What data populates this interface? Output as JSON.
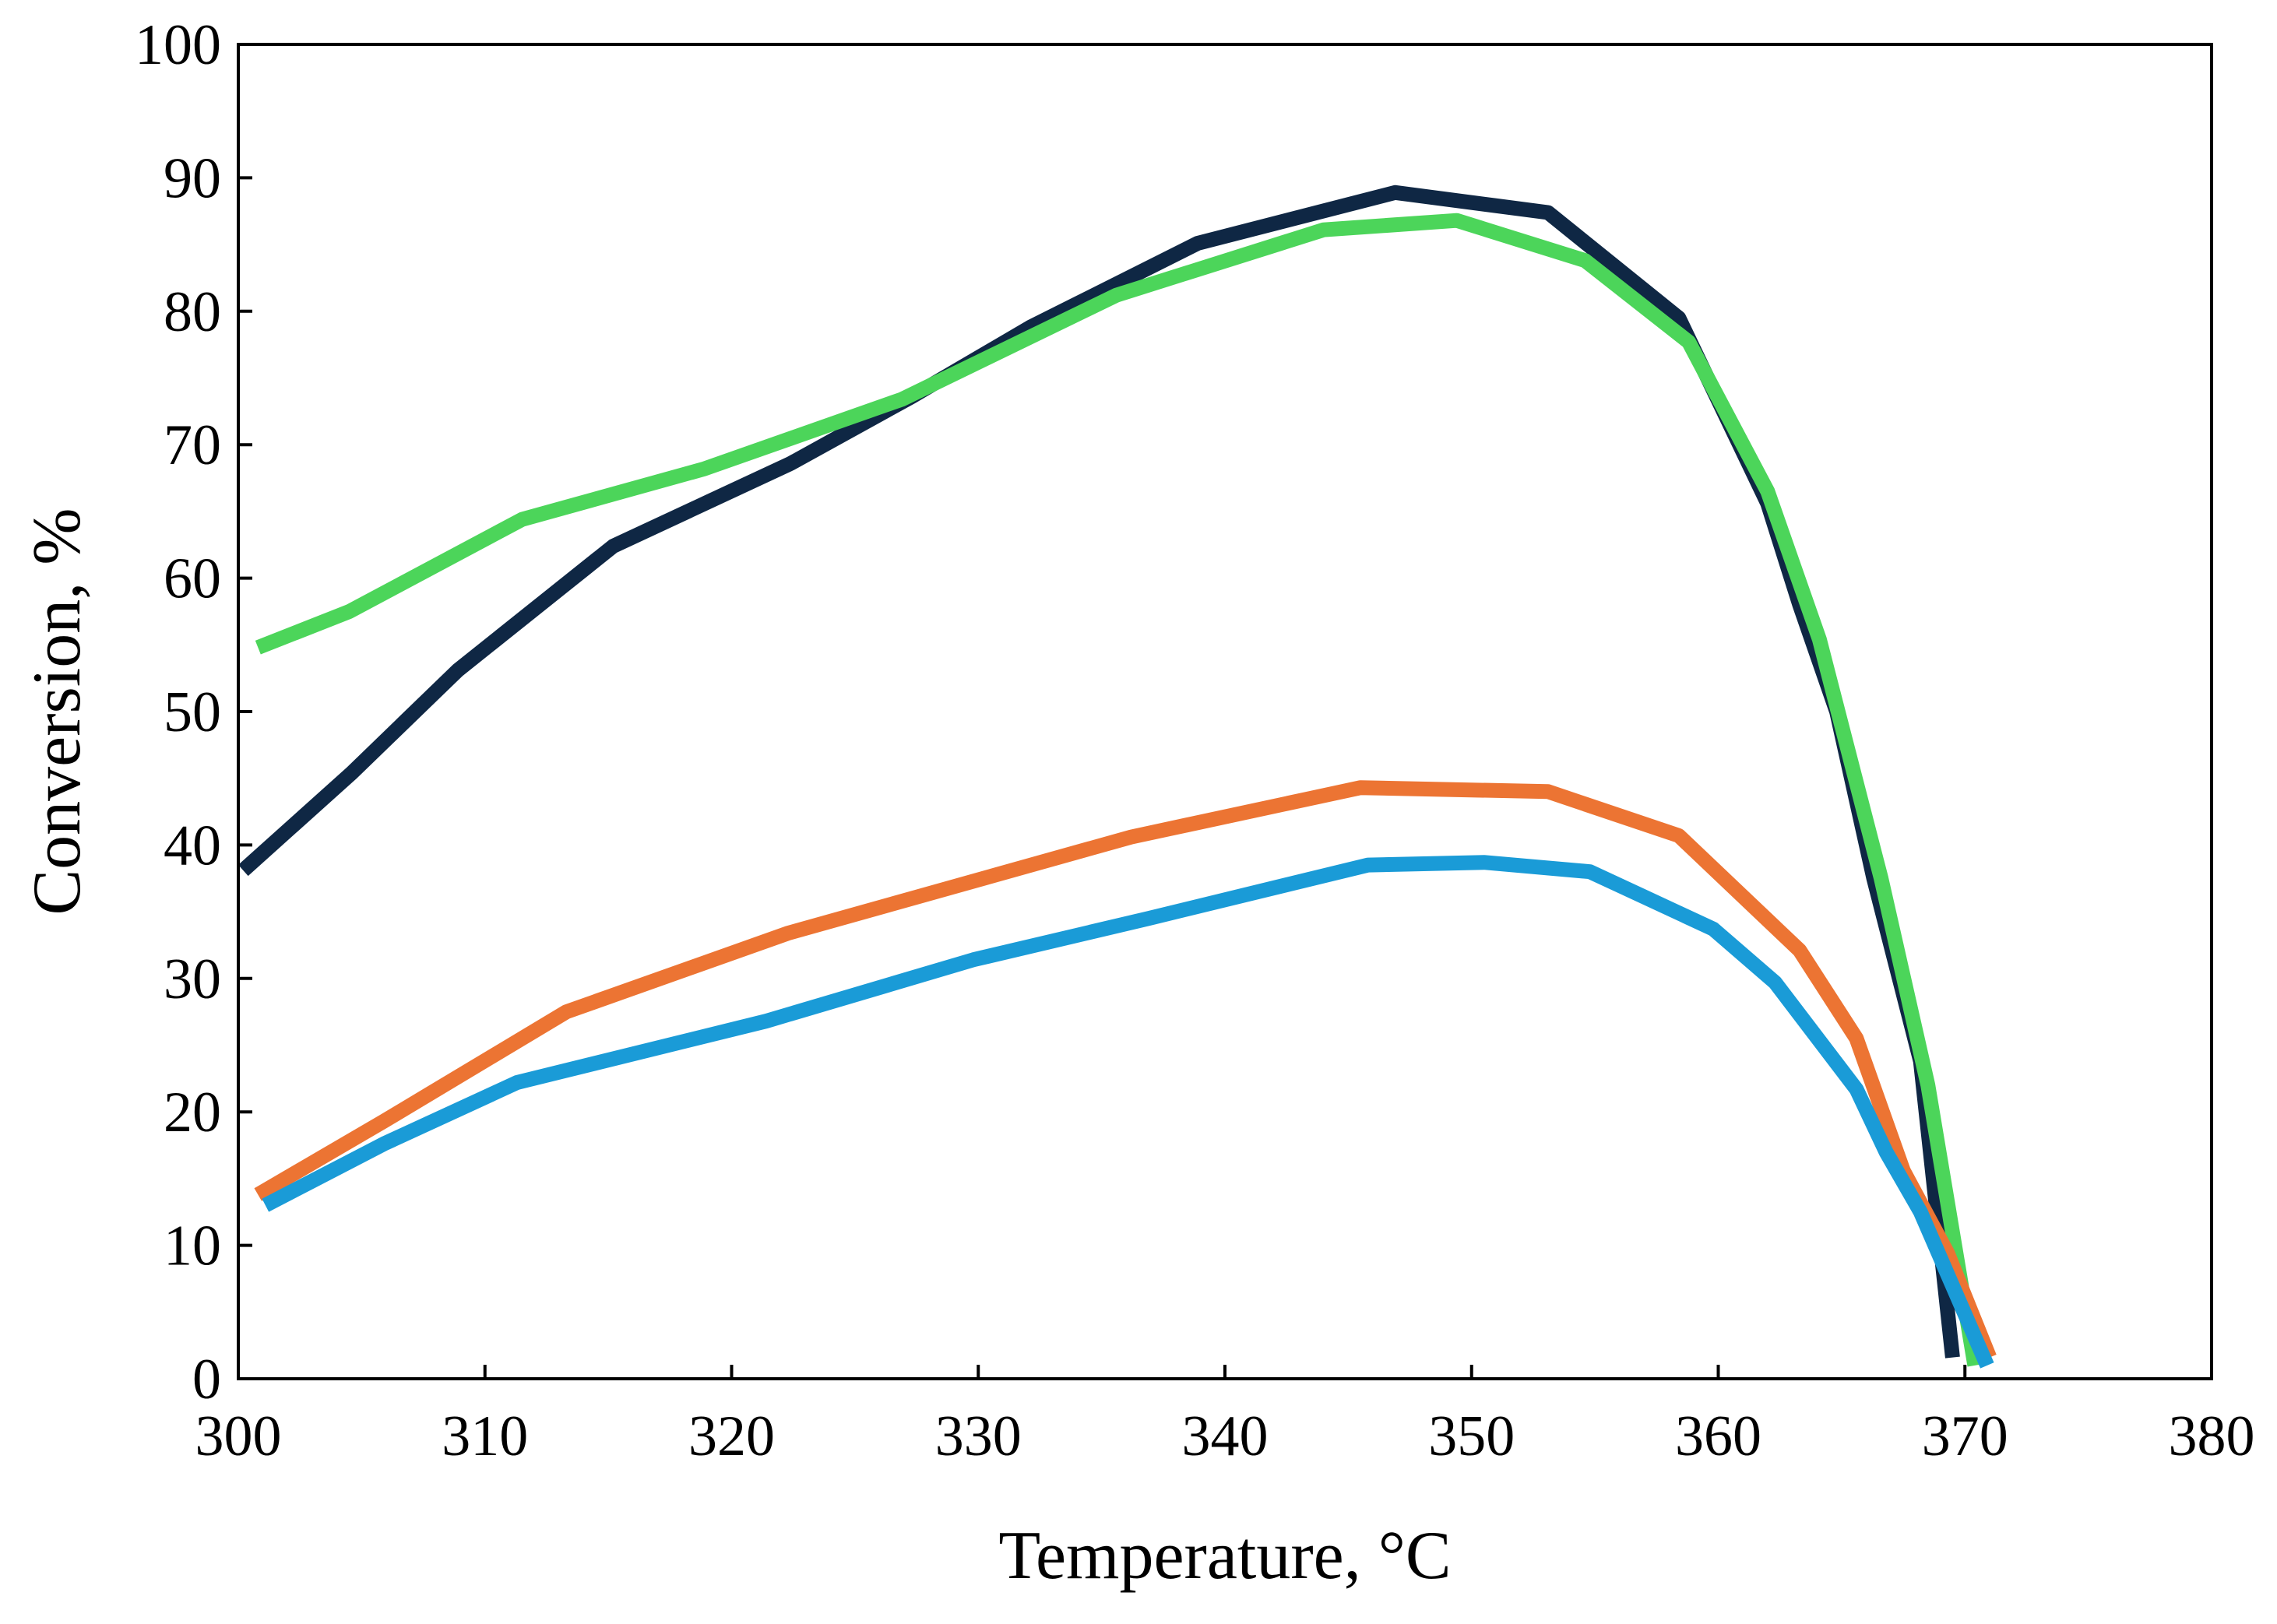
{
  "chart_data": {
    "type": "line",
    "title": "",
    "xlabel": "Temperature, °C",
    "ylabel": "Conversion, %",
    "xlim": [
      300,
      380
    ],
    "ylim": [
      0,
      100
    ],
    "x_ticks": [
      300,
      310,
      320,
      330,
      340,
      350,
      360,
      370,
      380
    ],
    "y_ticks": [
      0,
      10,
      20,
      30,
      40,
      50,
      60,
      70,
      80,
      90,
      100
    ],
    "x_tick_labels": [
      "300",
      "310",
      "320",
      "330",
      "340",
      "350",
      "360",
      "370",
      "380"
    ],
    "y_tick_labels": [
      "0",
      "10",
      "20",
      "30",
      "40",
      "50",
      "60",
      "70",
      "80",
      "90",
      "100"
    ],
    "grid": false,
    "legend": "none",
    "series": [
      {
        "name": "dark-navy series",
        "color": "#0f2744",
        "points": [
          [
            300.2,
            38.1
          ],
          [
            304.6,
            45.4
          ],
          [
            308.9,
            53.1
          ],
          [
            315.2,
            62.4
          ],
          [
            322.4,
            68.6
          ],
          [
            327.3,
            73.6
          ],
          [
            332.1,
            78.8
          ],
          [
            338.9,
            85.1
          ],
          [
            346.9,
            88.9
          ],
          [
            353.1,
            87.4
          ],
          [
            358.4,
            79.5
          ],
          [
            362.0,
            65.6
          ],
          [
            363.3,
            58.0
          ],
          [
            364.8,
            50.0
          ],
          [
            366.3,
            37.5
          ],
          [
            368.2,
            23.8
          ],
          [
            369.5,
            1.6
          ]
        ]
      },
      {
        "name": "green series",
        "color": "#4cd55a",
        "points": [
          [
            300.8,
            54.8
          ],
          [
            304.5,
            57.5
          ],
          [
            311.5,
            64.4
          ],
          [
            318.9,
            68.2
          ],
          [
            326.9,
            73.4
          ],
          [
            335.6,
            81.2
          ],
          [
            344.0,
            86.1
          ],
          [
            349.4,
            86.8
          ],
          [
            354.6,
            83.8
          ],
          [
            358.8,
            77.7
          ],
          [
            362.0,
            66.5
          ],
          [
            364.1,
            55.4
          ],
          [
            366.6,
            37.5
          ],
          [
            368.5,
            22.0
          ],
          [
            370.4,
            1.0
          ]
        ]
      },
      {
        "name": "orange series",
        "color": "#ec7433",
        "points": [
          [
            300.8,
            13.8
          ],
          [
            305.9,
            19.3
          ],
          [
            313.3,
            27.5
          ],
          [
            322.3,
            33.4
          ],
          [
            336.2,
            40.6
          ],
          [
            345.5,
            44.3
          ],
          [
            353.1,
            44.0
          ],
          [
            358.4,
            40.7
          ],
          [
            363.3,
            32.1
          ],
          [
            365.6,
            25.5
          ],
          [
            367.5,
            15.6
          ],
          [
            369.3,
            9.4
          ],
          [
            371.0,
            1.6
          ]
        ]
      },
      {
        "name": "blue series",
        "color": "#1a9bd7",
        "points": [
          [
            301.1,
            13.0
          ],
          [
            305.9,
            17.6
          ],
          [
            311.3,
            22.2
          ],
          [
            321.4,
            26.8
          ],
          [
            329.8,
            31.4
          ],
          [
            336.9,
            34.5
          ],
          [
            345.8,
            38.5
          ],
          [
            350.5,
            38.7
          ],
          [
            354.8,
            38.0
          ],
          [
            359.8,
            33.7
          ],
          [
            362.3,
            29.7
          ],
          [
            365.6,
            21.7
          ],
          [
            366.8,
            17.0
          ],
          [
            368.2,
            12.5
          ],
          [
            370.9,
            1.0
          ]
        ]
      }
    ]
  }
}
